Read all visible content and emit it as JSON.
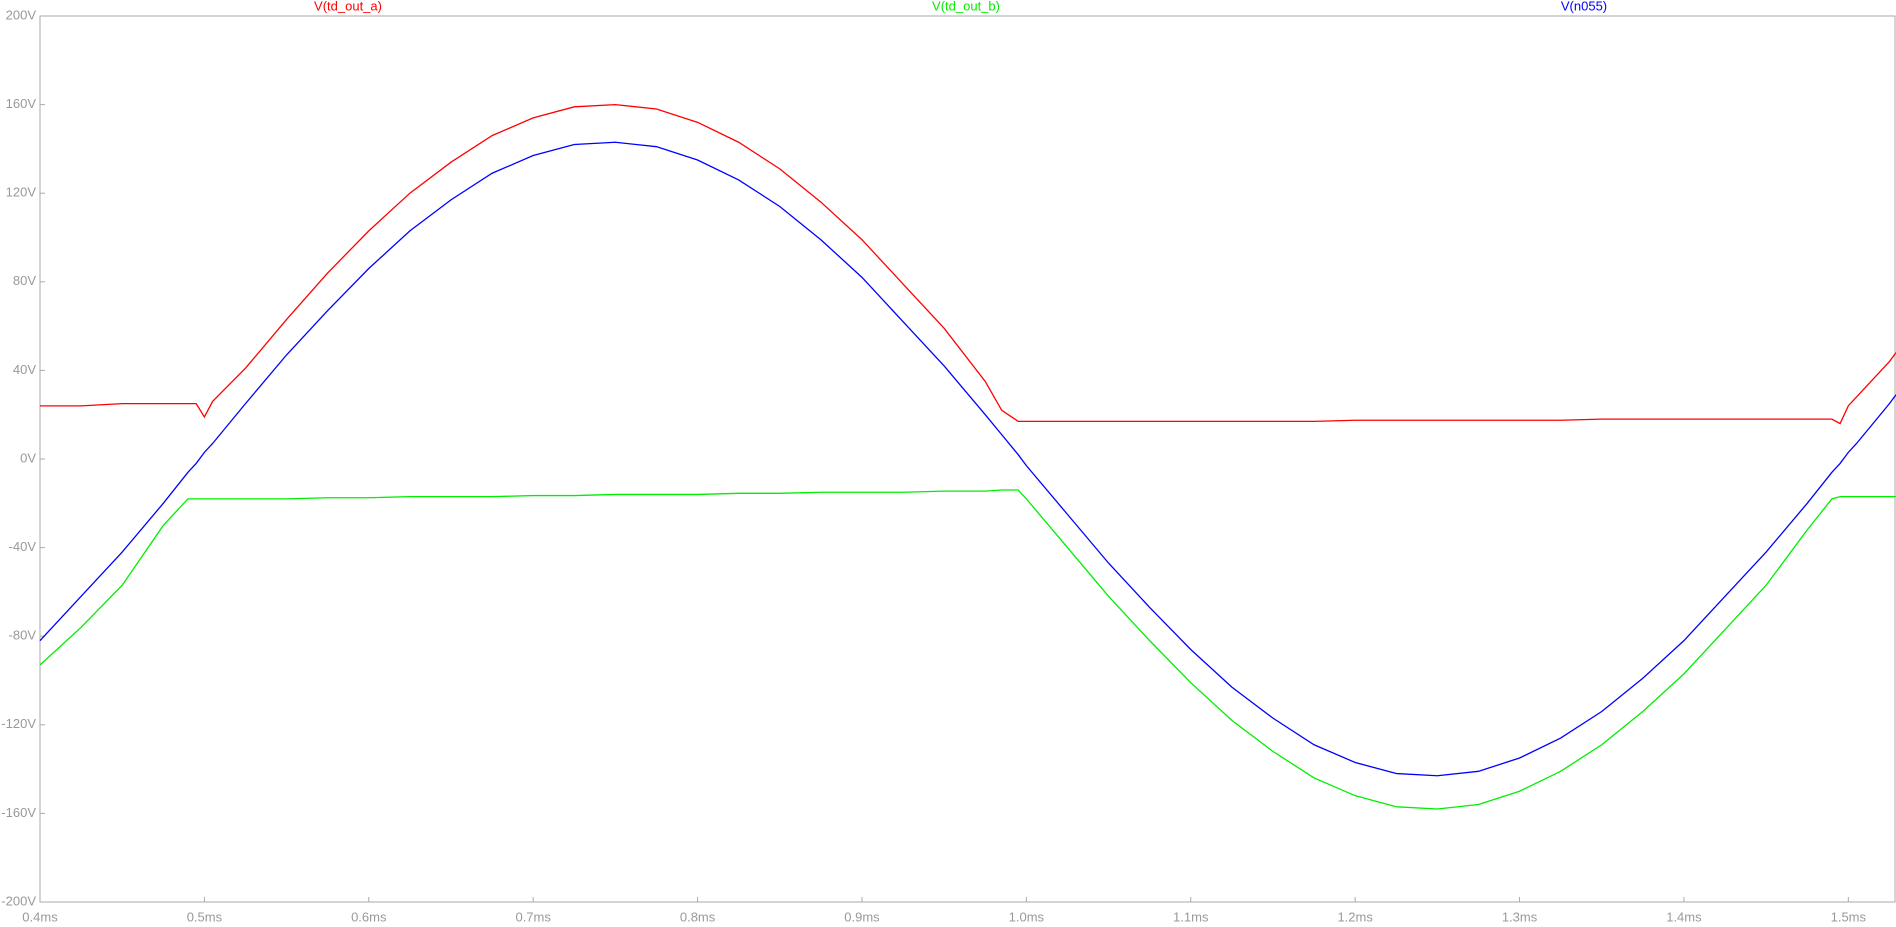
{
  "chart_data": {
    "type": "line",
    "x": [
      0.4,
      0.425,
      0.45,
      0.475,
      0.49,
      0.495,
      0.5,
      0.505,
      0.525,
      0.55,
      0.575,
      0.6,
      0.625,
      0.65,
      0.675,
      0.7,
      0.725,
      0.75,
      0.775,
      0.8,
      0.825,
      0.85,
      0.875,
      0.9,
      0.925,
      0.95,
      0.975,
      0.985,
      0.995,
      1.0,
      1.025,
      1.05,
      1.075,
      1.1,
      1.125,
      1.15,
      1.175,
      1.2,
      1.225,
      1.25,
      1.275,
      1.3,
      1.325,
      1.35,
      1.375,
      1.4,
      1.425,
      1.45,
      1.475,
      1.49,
      1.495,
      1.5,
      1.505,
      1.525,
      1.529
    ],
    "series": [
      {
        "name": "V(td_out_a)",
        "color": "#ff0000",
        "values": [
          24,
          24,
          25,
          25,
          25,
          25,
          19,
          26,
          41,
          63,
          84,
          103,
          120,
          134,
          146,
          154,
          159,
          160,
          158,
          152,
          143,
          131,
          116,
          99,
          79,
          59,
          35,
          22,
          17,
          17,
          17,
          17,
          17,
          17,
          17,
          17,
          17,
          17.5,
          17.5,
          17.5,
          17.5,
          17.5,
          17.5,
          18,
          18,
          18,
          18,
          18,
          18,
          18,
          16,
          24,
          28,
          44,
          48
        ]
      },
      {
        "name": "V(td_out_b)",
        "color": "#00ee00",
        "values": [
          -93,
          -76,
          -57,
          -30,
          -18,
          -18,
          -18,
          -18,
          -18,
          -18,
          -17.5,
          -17.5,
          -17,
          -17,
          -17,
          -16.5,
          -16.5,
          -16,
          -16,
          -16,
          -15.5,
          -15.5,
          -15,
          -15,
          -15,
          -14.5,
          -14.5,
          -14,
          -14,
          -18,
          -40,
          -62,
          -82,
          -101,
          -118,
          -132,
          -144,
          -152,
          -157,
          -158,
          -156,
          -150,
          -141,
          -129,
          -114,
          -97,
          -77,
          -57,
          -32,
          -18,
          -17,
          -17,
          -17,
          -17,
          -17
        ]
      },
      {
        "name": "V(n055)",
        "color": "#0000ff",
        "values": [
          -82,
          -62,
          -42,
          -20,
          -6,
          -2,
          3,
          7,
          25,
          47,
          67,
          86,
          103,
          117,
          129,
          137,
          142,
          143,
          141,
          135,
          126,
          114,
          99,
          82,
          62,
          42,
          20,
          11,
          2,
          -3,
          -25,
          -47,
          -67,
          -86,
          -103,
          -117,
          -129,
          -137,
          -142,
          -143,
          -141,
          -135,
          -126,
          -114,
          -99,
          -82,
          -62,
          -42,
          -20,
          -6,
          -2,
          3,
          7,
          25,
          29
        ]
      }
    ],
    "xlim": [
      0.4,
      1.529
    ],
    "ylim": [
      -200,
      200
    ],
    "xticks": [
      {
        "value": 0.4,
        "label": "0.4ms"
      },
      {
        "value": 0.5,
        "label": "0.5ms"
      },
      {
        "value": 0.6,
        "label": "0.6ms"
      },
      {
        "value": 0.7,
        "label": "0.7ms"
      },
      {
        "value": 0.8,
        "label": "0.8ms"
      },
      {
        "value": 0.9,
        "label": "0.9ms"
      },
      {
        "value": 1.0,
        "label": "1.0ms"
      },
      {
        "value": 1.1,
        "label": "1.1ms"
      },
      {
        "value": 1.2,
        "label": "1.2ms"
      },
      {
        "value": 1.3,
        "label": "1.3ms"
      },
      {
        "value": 1.4,
        "label": "1.4ms"
      },
      {
        "value": 1.5,
        "label": "1.5ms"
      }
    ],
    "yticks": [
      {
        "value": -200,
        "label": "-200V"
      },
      {
        "value": -160,
        "label": "-160V"
      },
      {
        "value": -120,
        "label": "-120V"
      },
      {
        "value": -80,
        "label": "-80V"
      },
      {
        "value": -40,
        "label": "-40V"
      },
      {
        "value": 0,
        "label": "0V"
      },
      {
        "value": 40,
        "label": "40V"
      },
      {
        "value": 80,
        "label": "80V"
      },
      {
        "value": 120,
        "label": "120V"
      },
      {
        "value": 160,
        "label": "160V"
      },
      {
        "value": 200,
        "label": "200V"
      }
    ],
    "grid": false
  }
}
